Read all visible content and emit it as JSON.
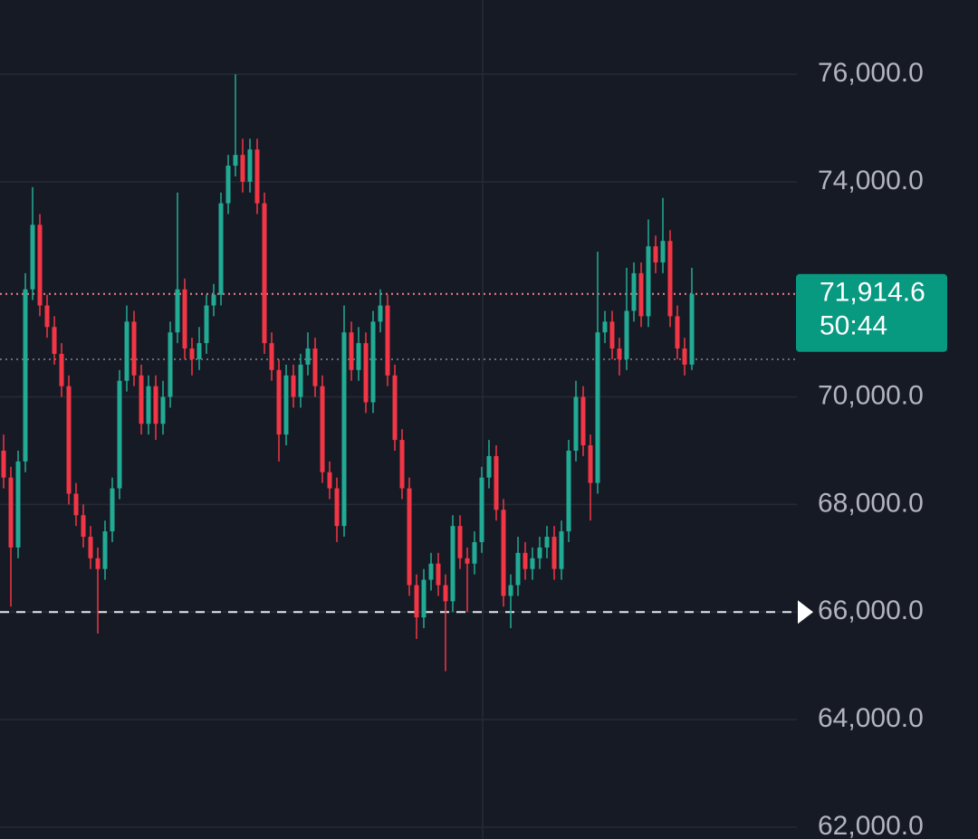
{
  "chart_data": {
    "type": "candlestick",
    "ylim": [
      61780,
      77380
    ],
    "yticks": [
      {
        "value": 62000,
        "label": "62,000.0"
      },
      {
        "value": 64000,
        "label": "64,000.0"
      },
      {
        "value": 66000,
        "label": "66,000.0"
      },
      {
        "value": 68000,
        "label": "68,000.0"
      },
      {
        "value": 70000,
        "label": "70,000.0"
      },
      {
        "value": 74000,
        "label": "74,000.0"
      },
      {
        "value": 76000,
        "label": "76,000.0"
      }
    ],
    "grid": true,
    "up_color": "#22ab94",
    "down_color": "#f23645",
    "last_price": {
      "value": 71914.6,
      "label": "71,914.6"
    },
    "countdown": "50:44",
    "dotted_line": 70700,
    "dashed_line": 66000,
    "open": [
      69000,
      68500,
      67200,
      68800,
      72000,
      73200,
      71700,
      71300,
      70800,
      70200,
      68200,
      67800,
      67400,
      67000,
      66800,
      67500,
      68300,
      70300,
      71400,
      70400,
      69500,
      70200,
      69500,
      70000,
      71200,
      72000,
      70900,
      70700,
      71000,
      71700,
      71900,
      73600,
      74300,
      74500,
      74000,
      74600,
      73600,
      71000,
      70500,
      69300,
      70400,
      70000,
      70600,
      70900,
      70200,
      68600,
      68300,
      67600,
      71200,
      70500,
      71000,
      69900,
      71400,
      71700,
      70400,
      69200,
      68300,
      66500,
      65900,
      66600,
      66900,
      66500,
      66200,
      67600,
      67000,
      66900,
      67300,
      68500,
      68900,
      67900,
      66300,
      66500,
      67100,
      66800,
      67000,
      67200,
      67400,
      66800,
      67500,
      69000,
      70000,
      69100,
      68400,
      71200,
      71400,
      70900,
      70700,
      71600,
      72300,
      71500,
      72800,
      72500,
      72900,
      71500,
      70900,
      70600
    ],
    "high": [
      69300,
      68700,
      69000,
      72300,
      73900,
      73400,
      71900,
      71500,
      71000,
      70400,
      68400,
      68000,
      67600,
      67200,
      67700,
      68500,
      70500,
      71700,
      71600,
      70600,
      70400,
      70400,
      70300,
      71400,
      73800,
      72200,
      71100,
      71300,
      71900,
      72100,
      73800,
      74500,
      76000,
      74800,
      74800,
      74800,
      73800,
      71200,
      70700,
      70600,
      70600,
      70800,
      71200,
      71100,
      70400,
      68800,
      68500,
      71700,
      71400,
      71300,
      71200,
      71600,
      72000,
      71900,
      70600,
      69400,
      68500,
      66700,
      66800,
      67100,
      67100,
      66700,
      67800,
      67800,
      67200,
      67500,
      68700,
      69200,
      69100,
      68100,
      66700,
      67400,
      67300,
      67200,
      67400,
      67600,
      67600,
      67700,
      69200,
      70300,
      70200,
      69300,
      72700,
      71600,
      71600,
      71100,
      72400,
      72500,
      72500,
      73300,
      73000,
      73700,
      73100,
      71700,
      71100,
      72400
    ],
    "low": [
      68300,
      66100,
      67000,
      68600,
      71800,
      71500,
      71100,
      70600,
      70000,
      68000,
      67600,
      67200,
      66800,
      65600,
      66600,
      67300,
      68100,
      70100,
      70200,
      69300,
      69300,
      69200,
      69300,
      69800,
      71000,
      70700,
      70400,
      70500,
      70800,
      71500,
      71700,
      73400,
      74100,
      73800,
      73800,
      73400,
      70800,
      70300,
      68800,
      69100,
      69800,
      69800,
      70400,
      70000,
      68400,
      68100,
      67300,
      67400,
      70300,
      70300,
      69700,
      69700,
      71200,
      70200,
      69000,
      68100,
      66300,
      65500,
      65700,
      66400,
      66300,
      64900,
      66000,
      66800,
      66000,
      66700,
      67100,
      68300,
      67700,
      66100,
      65700,
      66300,
      66600,
      66600,
      66800,
      67000,
      66600,
      66600,
      67300,
      68800,
      68900,
      67700,
      68200,
      71000,
      70700,
      70400,
      70500,
      71400,
      71300,
      71300,
      72300,
      72300,
      71300,
      70700,
      70400,
      70500
    ],
    "close": [
      68500,
      67200,
      68800,
      72000,
      73200,
      71700,
      71300,
      70800,
      70200,
      68200,
      67800,
      67400,
      67000,
      66800,
      67500,
      68300,
      70300,
      71400,
      70400,
      69500,
      70200,
      69500,
      70000,
      71200,
      72000,
      70900,
      70700,
      71000,
      71700,
      71900,
      73600,
      74300,
      74500,
      74000,
      74600,
      73600,
      71000,
      70500,
      69300,
      70400,
      70000,
      70600,
      70900,
      70200,
      68600,
      68300,
      67600,
      71200,
      70500,
      71000,
      69900,
      71400,
      71700,
      70400,
      69200,
      68300,
      66500,
      65900,
      66600,
      66900,
      66500,
      66200,
      67600,
      67000,
      66900,
      67300,
      68500,
      68900,
      67900,
      66300,
      66500,
      67100,
      66800,
      67000,
      67200,
      67400,
      66800,
      67500,
      69000,
      70000,
      69100,
      68400,
      71200,
      71400,
      70900,
      70700,
      71600,
      72300,
      71500,
      72800,
      72500,
      72900,
      71500,
      70900,
      70600,
      71914.6
    ]
  }
}
